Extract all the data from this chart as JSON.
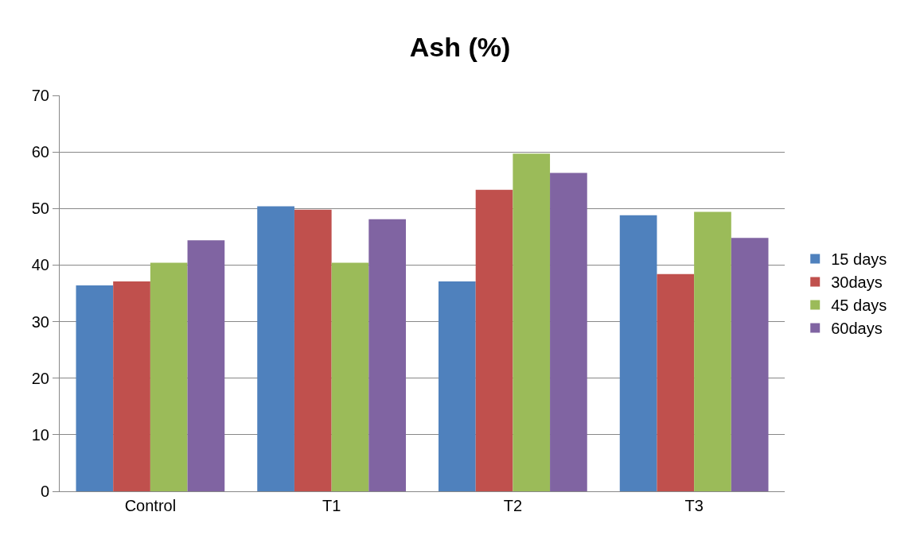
{
  "chart_data": {
    "type": "bar",
    "title": "Ash (%)",
    "categories": [
      "Control",
      "T1",
      "T2",
      "T3"
    ],
    "series": [
      {
        "name": "15 days",
        "color": "#4f81bd",
        "values": [
          36.4,
          50.4,
          37.1,
          48.8
        ]
      },
      {
        "name": "30days",
        "color": "#c0504d",
        "values": [
          37.1,
          49.8,
          53.3,
          38.4
        ]
      },
      {
        "name": "45 days",
        "color": "#9bbb59",
        "values": [
          40.4,
          40.4,
          59.7,
          49.4
        ]
      },
      {
        "name": "60days",
        "color": "#8064a2",
        "values": [
          44.4,
          48.1,
          56.3,
          44.8
        ]
      }
    ],
    "ylim": [
      0,
      70
    ],
    "yticks": [
      0,
      10,
      20,
      30,
      40,
      50,
      60,
      70
    ],
    "grid": "y",
    "legend": "right"
  }
}
